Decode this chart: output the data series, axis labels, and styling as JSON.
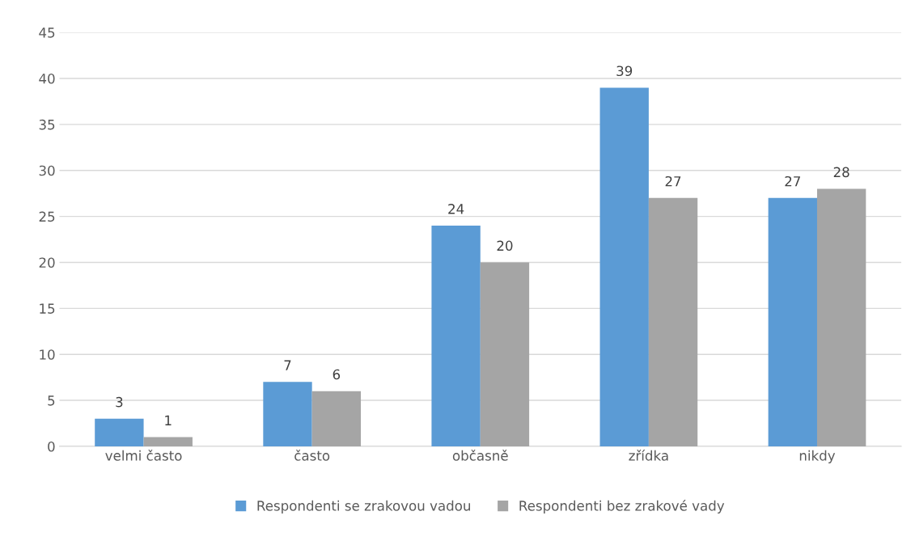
{
  "chart_data": {
    "type": "bar",
    "categories": [
      "velmi často",
      "často",
      "občasně",
      "zřídka",
      "nikdy"
    ],
    "series": [
      {
        "name": "Respondenti se zrakovou vadou",
        "color": "#5b9bd5",
        "values": [
          3,
          7,
          24,
          39,
          27
        ]
      },
      {
        "name": "Respondenti bez zrakové vady",
        "color": "#a5a5a5",
        "values": [
          1,
          6,
          20,
          27,
          28
        ]
      }
    ],
    "ylim": [
      0,
      45
    ],
    "yticks": [
      0,
      5,
      10,
      15,
      20,
      25,
      30,
      35,
      40,
      45
    ],
    "grid": "y",
    "legend": "bottom",
    "data_labels": true
  }
}
